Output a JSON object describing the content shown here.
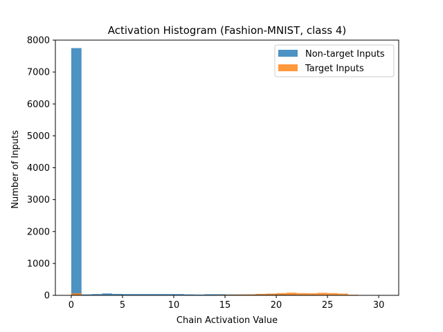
{
  "chart_data": {
    "type": "bar",
    "title": "Activation Histogram (Fashion-MNIST, class 4)",
    "xlabel": "Chain Activation Value",
    "ylabel": "Number of Inputs",
    "xlim": [
      -1.55,
      31.95
    ],
    "ylim": [
      0,
      8000
    ],
    "xticks": [
      0,
      5,
      10,
      15,
      20,
      25,
      30
    ],
    "yticks": [
      0,
      1000,
      2000,
      3000,
      4000,
      5000,
      6000,
      7000,
      8000
    ],
    "bins": {
      "start": 0,
      "width": 1,
      "count": 31
    },
    "legend": {
      "position": "upper right"
    },
    "series": [
      {
        "name": "Non-target Inputs",
        "color": "#1f77b4",
        "opacity": 0.8,
        "values": [
          7750,
          30,
          40,
          60,
          45,
          40,
          40,
          40,
          40,
          40,
          40,
          30,
          25,
          35,
          35,
          30,
          30,
          30,
          40,
          40,
          40,
          30,
          20,
          20,
          15,
          15,
          10,
          10,
          5,
          5,
          5
        ]
      },
      {
        "name": "Target Inputs",
        "color": "#ff7f0e",
        "opacity": 0.8,
        "values": [
          70,
          0,
          0,
          0,
          0,
          0,
          0,
          0,
          0,
          0,
          0,
          0,
          5,
          10,
          15,
          20,
          25,
          30,
          45,
          55,
          70,
          85,
          70,
          65,
          80,
          70,
          55,
          20,
          10,
          5,
          5
        ]
      }
    ]
  }
}
